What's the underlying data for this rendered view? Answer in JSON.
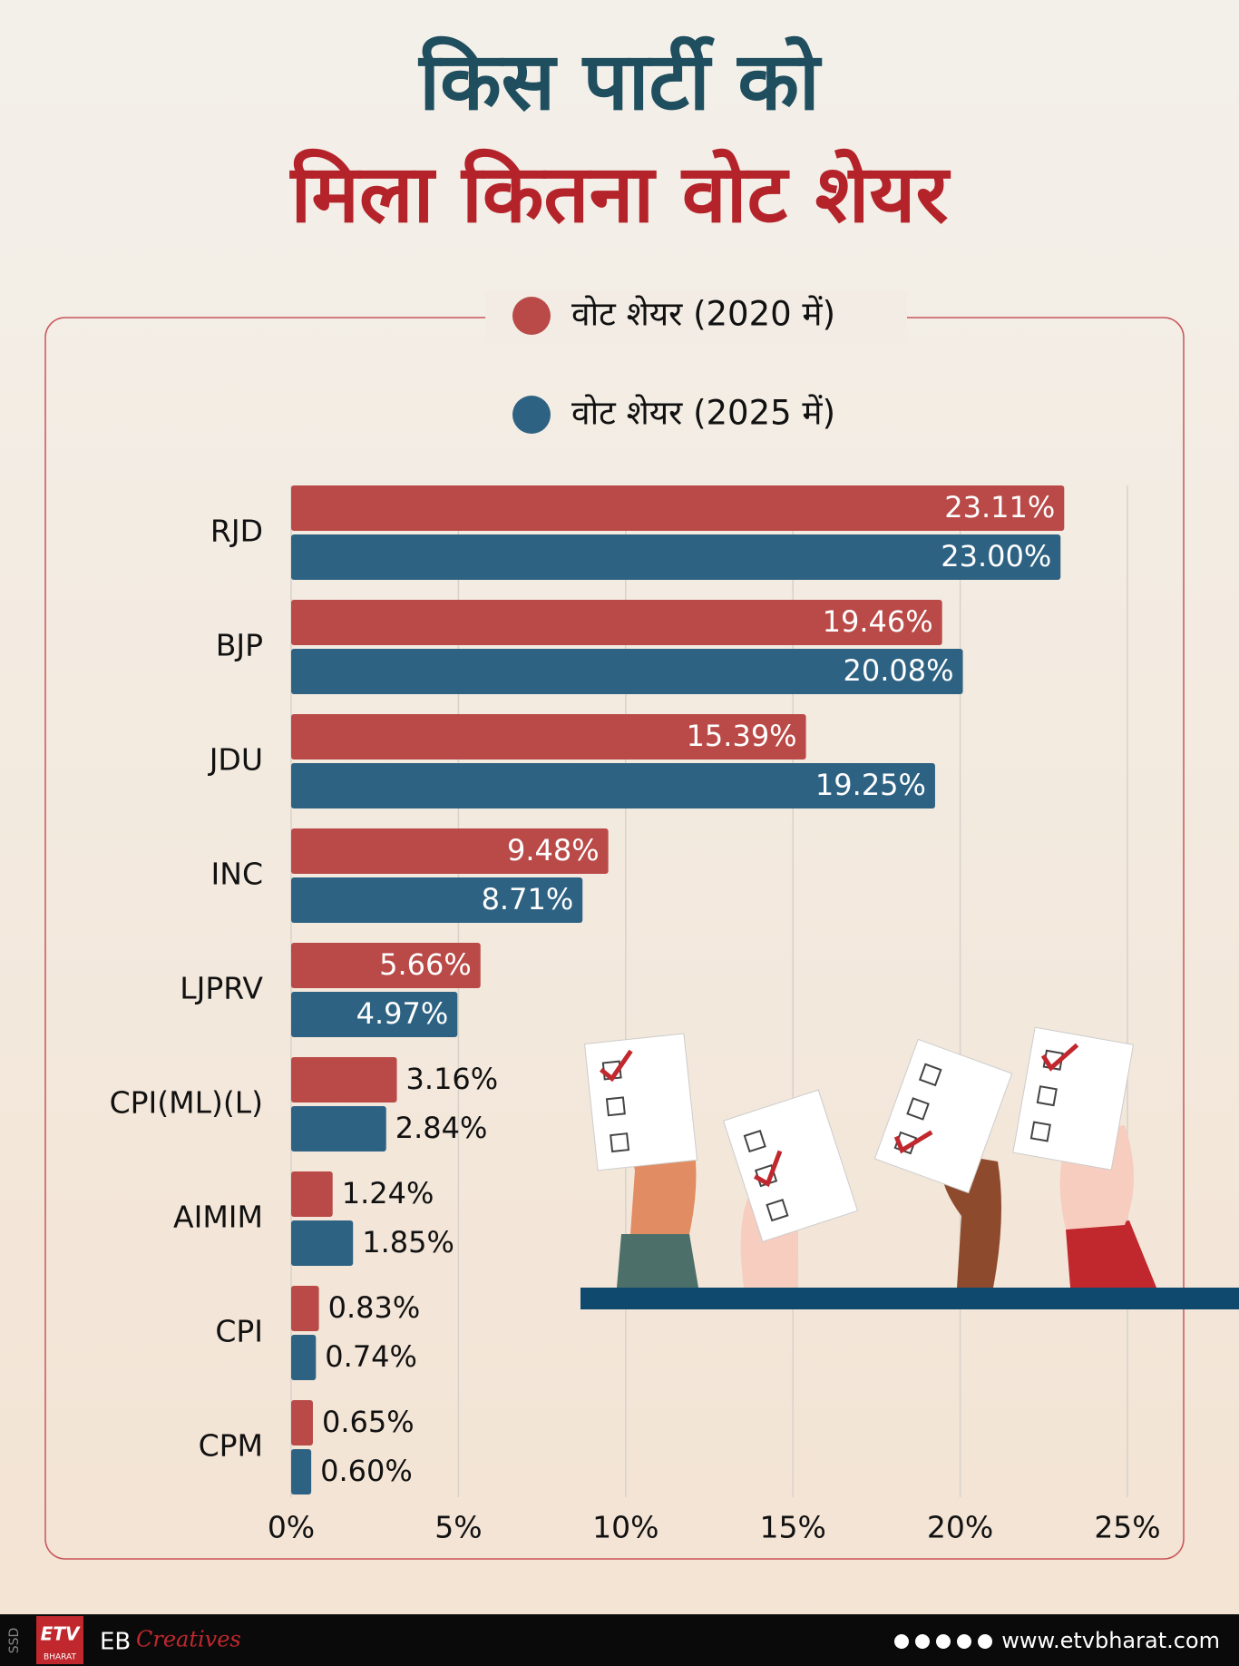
{
  "chart_data": {
    "type": "hbar",
    "title_lines": [
      "किस पार्टी को",
      "मिला कितना वोट शेयर"
    ],
    "categories": [
      "RJD",
      "BJP",
      "JDU",
      "INC",
      "LJPRV",
      "CPI(ML)(L)",
      "AIMIM",
      "CPI",
      "CPM"
    ],
    "series": [
      {
        "name": "वोट शेयर (2020 में)",
        "color": "#b94a48",
        "values": [
          23.11,
          19.46,
          15.39,
          9.48,
          5.66,
          3.16,
          1.24,
          0.83,
          0.65
        ],
        "value_labels": [
          "23.11%",
          "19.46%",
          "15.39%",
          "9.48%",
          "5.66%",
          "3.16%",
          "1.24%",
          "0.83%",
          "0.65%"
        ]
      },
      {
        "name": "वोट शेयर (2025 में)",
        "color": "#2e6283",
        "values": [
          23.0,
          20.08,
          19.25,
          8.71,
          4.97,
          2.84,
          1.85,
          0.74,
          0.6
        ],
        "value_labels": [
          "23.00%",
          "20.08%",
          "19.25%",
          "8.71%",
          "4.97%",
          "2.84%",
          "1.85%",
          "0.74%",
          "0.60%"
        ]
      }
    ],
    "xlim": [
      0,
      25
    ],
    "xticks": [
      {
        "value": 0,
        "label": "0%"
      },
      {
        "value": 5,
        "label": "5%"
      },
      {
        "value": 10,
        "label": "10%"
      },
      {
        "value": 15,
        "label": "15%"
      },
      {
        "value": 20,
        "label": "20%"
      },
      {
        "value": 25,
        "label": "25%"
      }
    ],
    "grid": true
  },
  "footer": {
    "side": "SSD",
    "logo": "ETV",
    "logo_sub": "BHARAT",
    "brand": "EB",
    "tag": "Creatives",
    "url": "www.etvbharat.com"
  }
}
